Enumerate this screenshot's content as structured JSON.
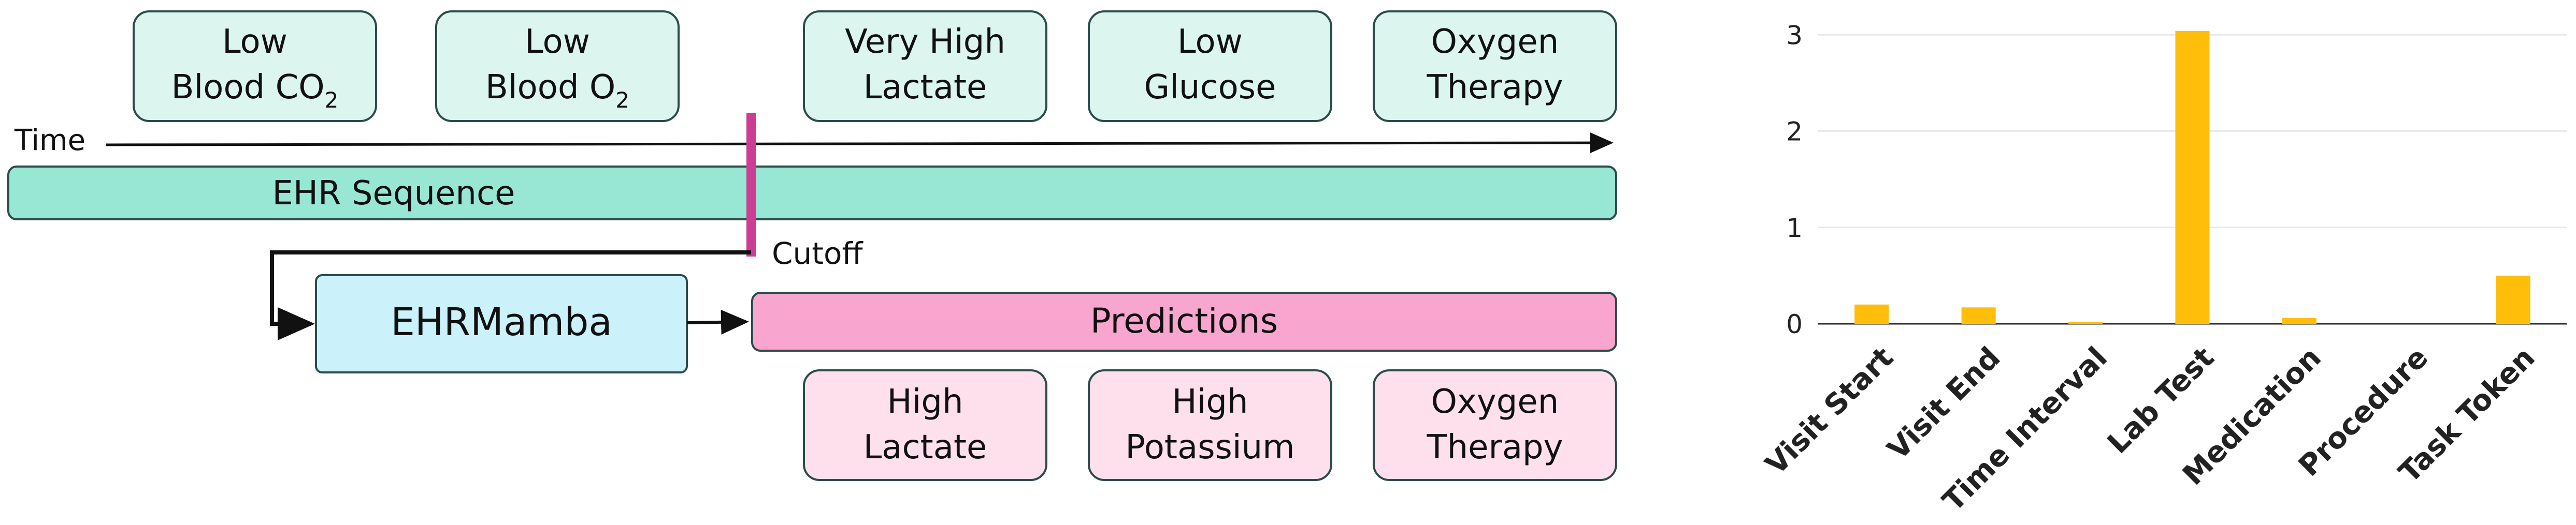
{
  "colors": {
    "event_box_fill": "#dcf5ee",
    "event_box_stroke": "#2c4c4a",
    "sequence_fill": "#98e7d4",
    "cutoff_line": "#cc3d94",
    "model_fill": "#cbf1fb",
    "predictions_fill": "#f8a6cf",
    "prediction_box_fill": "#fde0ec",
    "bar_color": "#ffbe0a",
    "axis_color": "#2b2b2b",
    "grid_color": "#e9e9e9"
  },
  "diagram": {
    "events": [
      {
        "line1": "Low",
        "line2": "Blood CO",
        "sub": "2"
      },
      {
        "line1": "Low",
        "line2": "Blood O",
        "sub": "2"
      },
      {
        "line1": "Very High",
        "line2": "Lactate",
        "sub": ""
      },
      {
        "line1": "Low",
        "line2": "Glucose",
        "sub": ""
      },
      {
        "line1": "Oxygen",
        "line2": "Therapy",
        "sub": ""
      }
    ],
    "time_label": "Time",
    "sequence_label": "EHR Sequence",
    "cutoff_label": "Cutoff",
    "model_label": "EHRMamba",
    "predictions_label": "Predictions",
    "predictions": [
      {
        "line1": "High",
        "line2": "Lactate"
      },
      {
        "line1": "High",
        "line2": "Potassium"
      },
      {
        "line1": "Oxygen",
        "line2": "Therapy"
      }
    ]
  },
  "chart_data": {
    "type": "bar",
    "categories": [
      "Visit Start",
      "Visit End",
      "Time Interval",
      "Lab Test",
      "Medication",
      "Procedure",
      "Task Token"
    ],
    "values": [
      0.2,
      0.17,
      0.02,
      3.04,
      0.06,
      0.0,
      0.5
    ],
    "ylim": [
      0,
      3.2
    ],
    "yticks": [
      0,
      1,
      2,
      3
    ],
    "grid": "horizontal",
    "title": "",
    "xlabel": "",
    "ylabel": ""
  }
}
